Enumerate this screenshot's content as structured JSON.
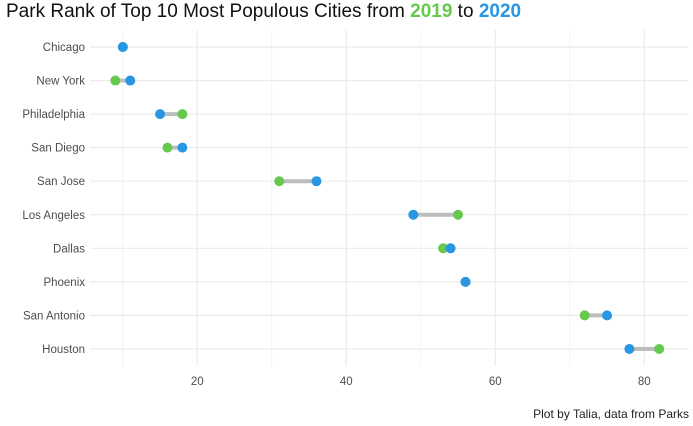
{
  "title": {
    "prefix": "Park Rank of Top 10 Most Populous Cities from ",
    "year_from": "2019",
    "connector": " to ",
    "year_to": "2020"
  },
  "caption": "Plot by Talia, data from Parks",
  "colors": {
    "year_2019": "#64c94c",
    "year_2020": "#2896e3",
    "segment": "#bdbdbd",
    "grid": "#ebebeb"
  },
  "chart_data": {
    "type": "dumbbell",
    "title": "Park Rank of Top 10 Most Populous Cities from 2019 to 2020",
    "xlabel": "",
    "ylabel": "",
    "xlim": [
      5.6,
      86
    ],
    "x_ticks": [
      20,
      40,
      60,
      80
    ],
    "grid": true,
    "legend": "none",
    "categories": [
      "Chicago",
      "New York",
      "Philadelphia",
      "San Diego",
      "San Jose",
      "Los Angeles",
      "Dallas",
      "Phoenix",
      "San Antonio",
      "Houston"
    ],
    "series": [
      {
        "name": "2019",
        "values": [
          10,
          9,
          18,
          16,
          31,
          55,
          53,
          56,
          72,
          82
        ]
      },
      {
        "name": "2020",
        "values": [
          10,
          11,
          15,
          18,
          36,
          49,
          54,
          56,
          75,
          78
        ]
      }
    ]
  }
}
